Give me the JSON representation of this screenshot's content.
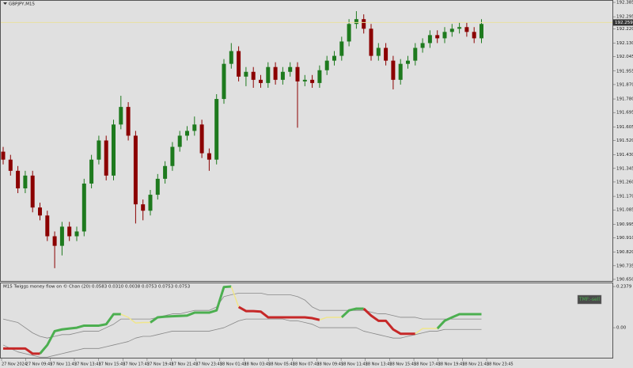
{
  "chart_data": [
    {
      "type": "candlestick",
      "title": "GBPJPY,M15",
      "current_price": 192.259,
      "current_color": "#e8e0a0",
      "up_color": "#1e7a1e",
      "down_color": "#8b0000",
      "ylim": [
        190.64,
        192.395
      ],
      "yticks": [
        192.385,
        192.295,
        {
          "value": 192.22,
          "label": "192.220"
        },
        {
          "value": 192.13,
          "label": "192.130"
        },
        192.045,
        191.955,
        {
          "value": 191.87,
          "label": "191.870"
        },
        {
          "value": 191.78,
          "label": "191.780"
        },
        191.695,
        191.605,
        {
          "value": 191.52,
          "label": "191.520"
        },
        {
          "value": 191.43,
          "label": "191.430"
        },
        191.345,
        {
          "value": 191.26,
          "label": "191.260"
        },
        {
          "value": 191.17,
          "label": "191.170"
        },
        191.085,
        190.995,
        {
          "value": 190.91,
          "label": "190.910"
        },
        {
          "value": 190.82,
          "label": "190.820"
        },
        190.735,
        {
          "value": 190.65,
          "label": "190.650"
        }
      ],
      "open": [
        191.45,
        191.4,
        191.33,
        191.22,
        191.3,
        191.1,
        191.05,
        190.92,
        190.86,
        190.98,
        190.92,
        190.95,
        191.25,
        191.4,
        191.52,
        191.3,
        191.62,
        191.73,
        191.55,
        191.12,
        191.08,
        191.18,
        191.28,
        191.36,
        191.48,
        191.55,
        191.58,
        191.62,
        191.44,
        191.4,
        191.78,
        192.0,
        192.08,
        191.92,
        191.95,
        191.9,
        191.88,
        191.98,
        191.9,
        191.95,
        191.98,
        191.89,
        191.9,
        191.88,
        191.96,
        192.02,
        192.05,
        192.14,
        192.25,
        192.28,
        192.22,
        192.05,
        192.1,
        192.02,
        191.9,
        192.0,
        192.02,
        192.1,
        192.13,
        192.18,
        192.16,
        192.2,
        192.22,
        192.23,
        192.2,
        192.16
      ],
      "high": [
        191.48,
        191.43,
        191.36,
        191.33,
        191.33,
        191.13,
        191.08,
        190.95,
        191.01,
        191.01,
        190.98,
        191.28,
        191.43,
        191.55,
        191.55,
        191.65,
        191.8,
        191.76,
        191.58,
        191.15,
        191.21,
        191.31,
        191.39,
        191.51,
        191.58,
        191.61,
        191.67,
        191.65,
        191.47,
        191.81,
        192.03,
        192.13,
        192.11,
        191.98,
        191.98,
        191.93,
        192.01,
        192.01,
        191.98,
        192.01,
        192.01,
        191.93,
        191.93,
        191.99,
        192.05,
        192.08,
        192.17,
        192.28,
        192.33,
        192.31,
        192.25,
        192.13,
        192.13,
        192.05,
        192.03,
        192.05,
        192.13,
        192.16,
        192.21,
        192.21,
        192.23,
        192.25,
        192.26,
        192.26,
        192.23,
        192.28
      ],
      "low": [
        191.37,
        191.3,
        191.19,
        191.19,
        191.07,
        191.02,
        190.89,
        190.72,
        190.8,
        190.89,
        190.89,
        190.92,
        191.22,
        191.37,
        191.27,
        191.27,
        191.59,
        191.52,
        191.0,
        191.02,
        191.05,
        191.15,
        191.25,
        191.33,
        191.45,
        191.52,
        191.55,
        191.41,
        191.33,
        191.37,
        191.75,
        191.97,
        191.89,
        191.86,
        191.85,
        191.85,
        191.85,
        191.87,
        191.87,
        191.92,
        191.6,
        191.86,
        191.85,
        191.85,
        191.93,
        191.99,
        192.02,
        192.11,
        192.22,
        192.19,
        192.02,
        192.02,
        191.99,
        191.84,
        191.87,
        191.97,
        191.99,
        192.07,
        192.1,
        192.13,
        192.13,
        192.17,
        192.19,
        192.17,
        192.13,
        192.13
      ],
      "close": [
        191.4,
        191.33,
        191.22,
        191.3,
        191.1,
        191.05,
        190.92,
        190.86,
        190.98,
        190.92,
        190.95,
        191.25,
        191.4,
        191.52,
        191.3,
        191.62,
        191.73,
        191.55,
        191.12,
        191.08,
        191.18,
        191.28,
        191.36,
        191.48,
        191.55,
        191.58,
        191.62,
        191.44,
        191.4,
        191.78,
        192.0,
        192.08,
        191.92,
        191.95,
        191.9,
        191.88,
        191.98,
        191.9,
        191.95,
        191.98,
        191.89,
        191.9,
        191.88,
        191.96,
        192.02,
        192.05,
        192.14,
        192.25,
        192.28,
        192.22,
        192.05,
        192.1,
        192.02,
        191.9,
        192.0,
        192.02,
        192.1,
        192.13,
        192.18,
        192.16,
        192.2,
        192.22,
        192.23,
        192.2,
        192.16,
        192.25
      ]
    },
    {
      "type": "line",
      "title": "M15 Twiggs money flow on © Chan (20) 0.0583 0.0310 0.0038 0.0753 0.0753 0.0753",
      "badge": "TMF:-sell",
      "ylim": [
        -0.178,
        0.261
      ],
      "yticks": [
        0.2379,
        {
          "value": 0,
          "label": "0.00"
        }
      ],
      "x_labels": [
        "27 Nov 2024",
        "27 Nov 09:45",
        "27 Nov 11:45",
        "27 Nov 13:45",
        "27 Nov 15:45",
        "27 Nov 17:45",
        "27 Nov 19:45",
        "27 Nov 21:45",
        "27 Nov 23:45",
        "28 Nov 01:45",
        "28 Nov 03:45",
        "28 Nov 05:45",
        "28 Nov 07:45",
        "28 Nov 09:45",
        "28 Nov 11:45",
        "28 Nov 13:45",
        "28 Nov 15:45",
        "28 Nov 17:45",
        "28 Nov 19:45",
        "28 Nov 21:45",
        "28 Nov 23:45"
      ],
      "series": [
        {
          "color": "#888888",
          "width": 0.8,
          "values": [
            0.05,
            0.04,
            0.03,
            0.0,
            -0.03,
            -0.05,
            -0.06,
            -0.05,
            -0.04,
            -0.04,
            -0.03,
            -0.02,
            -0.02,
            -0.02,
            0.0,
            0.02,
            0.05,
            0.05,
            0.05,
            0.05,
            0.05,
            0.06,
            0.07,
            0.08,
            0.08,
            0.09,
            0.1,
            0.1,
            0.1,
            0.12,
            0.18,
            0.19,
            0.2,
            0.2,
            0.2,
            0.2,
            0.19,
            0.19,
            0.19,
            0.19,
            0.18,
            0.16,
            0.12,
            0.1,
            0.1,
            0.1,
            0.1,
            0.1,
            0.1,
            0.1,
            0.09,
            0.08,
            0.08,
            0.07,
            0.06,
            0.06,
            0.06,
            0.05,
            0.05,
            0.05,
            0.05,
            0.05,
            0.05,
            0.05,
            0.05,
            0.05
          ]
        },
        {
          "color": "#888888",
          "width": 0.8,
          "values": [
            -0.1,
            -0.12,
            -0.14,
            -0.15,
            -0.16,
            -0.17,
            -0.17,
            -0.16,
            -0.15,
            -0.14,
            -0.13,
            -0.12,
            -0.12,
            -0.12,
            -0.11,
            -0.1,
            -0.09,
            -0.08,
            -0.06,
            -0.05,
            -0.05,
            -0.04,
            -0.03,
            -0.02,
            -0.02,
            -0.02,
            -0.02,
            -0.02,
            -0.02,
            -0.01,
            0.0,
            0.02,
            0.04,
            0.05,
            0.05,
            0.05,
            0.05,
            0.05,
            0.05,
            0.04,
            0.04,
            0.03,
            0.02,
            0.0,
            0.0,
            0.0,
            0.0,
            0.0,
            0.0,
            -0.02,
            -0.03,
            -0.04,
            -0.05,
            -0.06,
            -0.06,
            -0.05,
            -0.04,
            -0.03,
            -0.02,
            -0.02,
            -0.01,
            -0.01,
            -0.01,
            -0.01,
            -0.01,
            -0.01
          ]
        },
        {
          "color": "#4caf50",
          "width": 3,
          "values": [
            null,
            null,
            null,
            null,
            null,
            -0.15,
            -0.1,
            -0.02,
            -0.01,
            -0.005,
            0.0,
            0.012,
            0.012,
            0.012,
            0.02,
            0.078,
            0.078,
            null,
            null,
            null,
            0.03,
            0.06,
            0.064,
            0.066,
            0.068,
            0.07,
            0.087,
            0.087,
            0.087,
            0.1,
            0.235,
            0.238,
            null,
            null,
            null,
            null,
            null,
            null,
            null,
            null,
            null,
            null,
            null,
            null,
            null,
            null,
            0.06,
            0.1,
            0.11,
            0.11,
            null,
            null,
            null,
            null,
            null,
            null,
            null,
            null,
            null,
            -0.005,
            0.04,
            0.06,
            0.078,
            0.078,
            0.078,
            0.078
          ]
        },
        {
          "color": "#c62828",
          "width": 3,
          "values": [
            -0.12,
            -0.12,
            -0.12,
            -0.12,
            -0.15,
            -0.15,
            null,
            null,
            null,
            null,
            null,
            null,
            null,
            null,
            null,
            null,
            null,
            null,
            null,
            null,
            null,
            null,
            null,
            null,
            null,
            null,
            null,
            null,
            null,
            null,
            null,
            null,
            0.12,
            0.096,
            0.096,
            0.093,
            0.06,
            0.06,
            0.06,
            0.06,
            0.06,
            0.06,
            0.055,
            0.045,
            null,
            null,
            null,
            null,
            null,
            0.11,
            0.07,
            0.04,
            0.04,
            -0.01,
            -0.035,
            -0.035,
            -0.035,
            null,
            null,
            null,
            null,
            null,
            null,
            null,
            null,
            null
          ]
        },
        {
          "color": "#f0e68c",
          "width": 1.5,
          "values": [
            null,
            null,
            null,
            null,
            null,
            null,
            null,
            null,
            null,
            null,
            null,
            null,
            null,
            null,
            null,
            null,
            0.078,
            0.06,
            0.027,
            0.03,
            0.03,
            null,
            null,
            null,
            null,
            null,
            null,
            null,
            null,
            null,
            null,
            0.238,
            0.12,
            null,
            null,
            null,
            null,
            null,
            null,
            null,
            null,
            null,
            null,
            0.045,
            0.06,
            0.06,
            0.06,
            null,
            null,
            null,
            null,
            null,
            null,
            null,
            null,
            null,
            -0.035,
            -0.005,
            -0.005,
            -0.005,
            null,
            null,
            null,
            null,
            null,
            null
          ]
        }
      ]
    }
  ]
}
